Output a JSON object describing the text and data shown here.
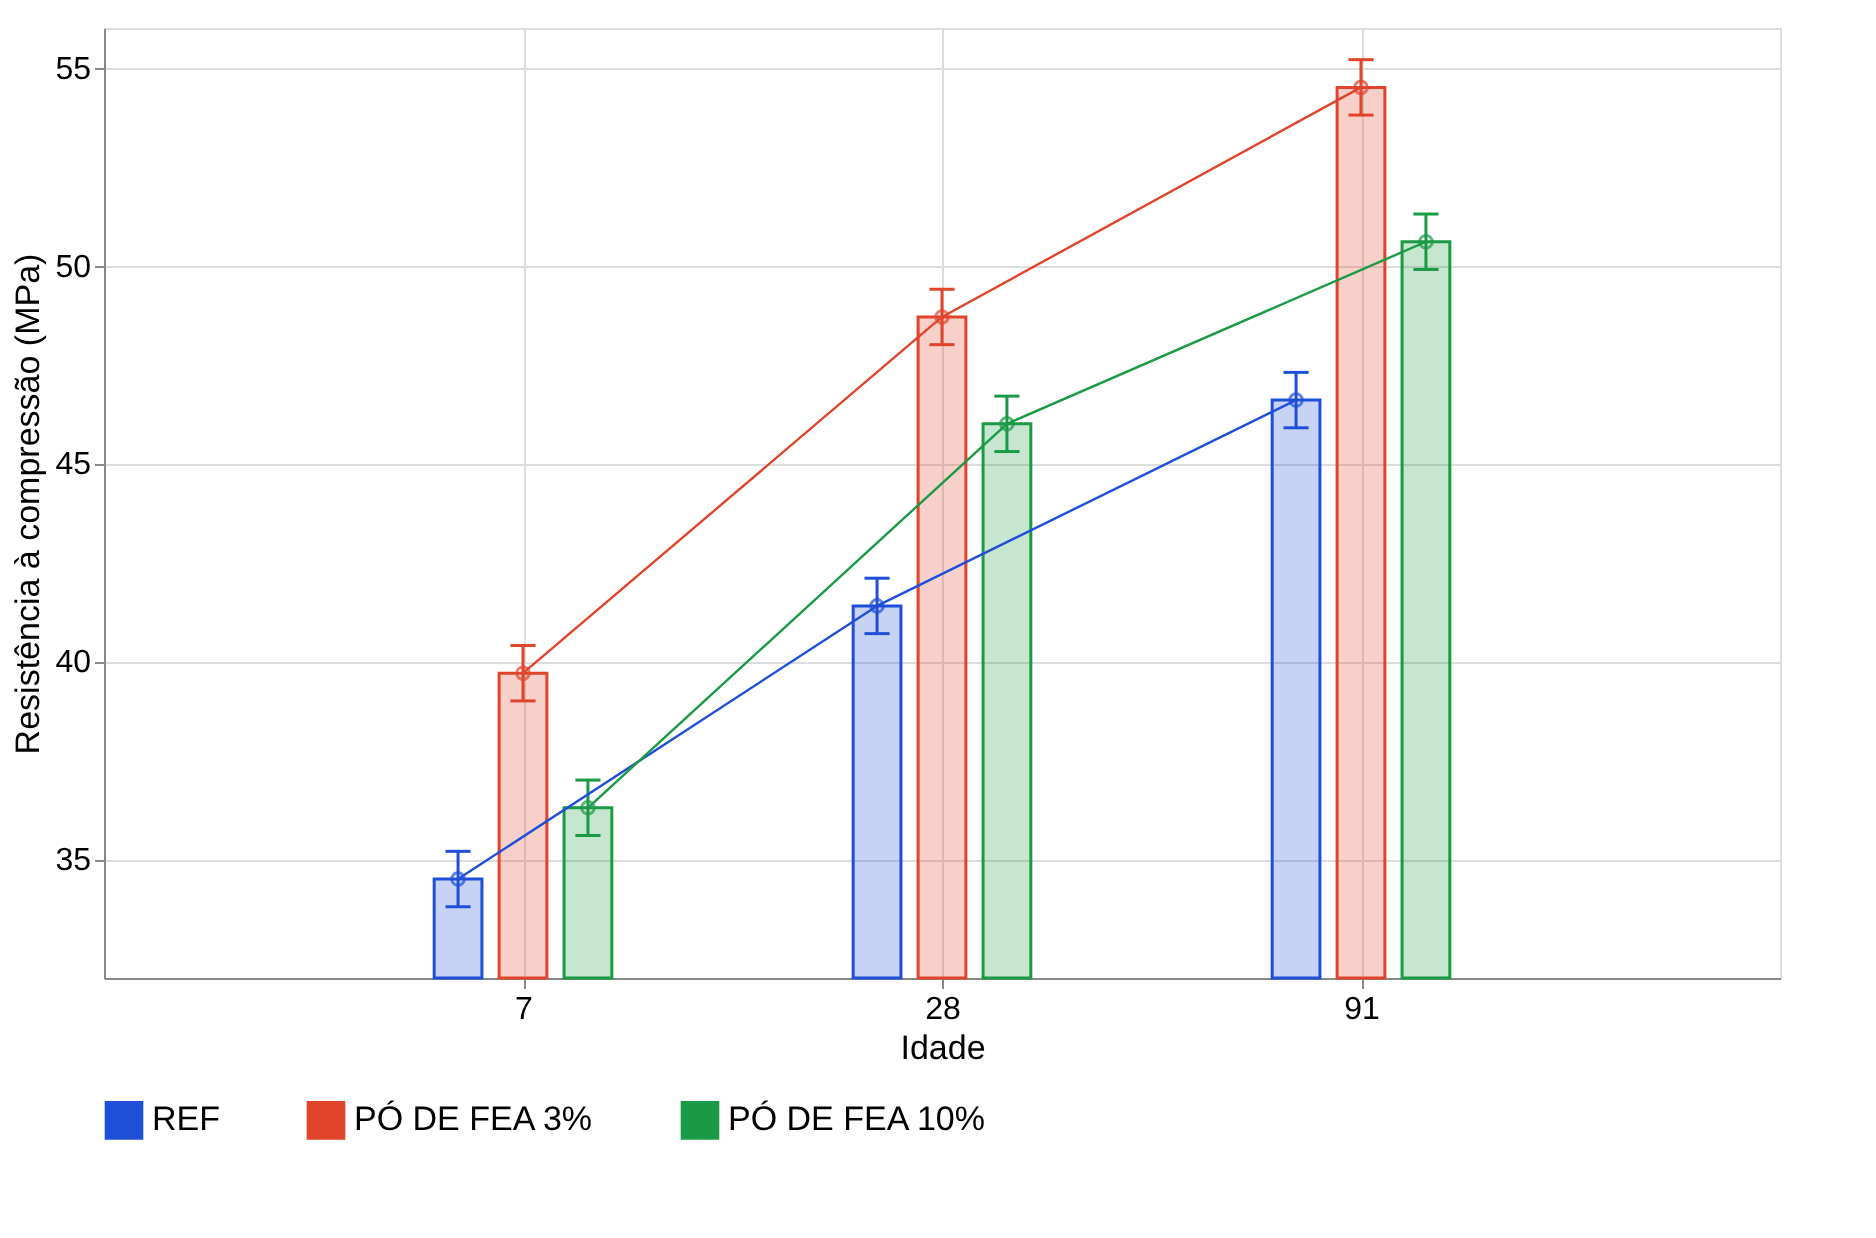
{
  "chart_data": {
    "type": "bar",
    "xlabel": "Idade",
    "ylabel": "Resistência à compressão (MPa)",
    "categories": [
      "7",
      "28",
      "91"
    ],
    "series": [
      {
        "name": "REF",
        "color": "#1f4fd8",
        "values": [
          34.5,
          41.4,
          46.6
        ],
        "errors": [
          0.7,
          0.7,
          0.7
        ]
      },
      {
        "name": "PÓ DE FEA 3%",
        "color": "#e0452b",
        "values": [
          39.7,
          48.7,
          54.5
        ],
        "errors": [
          0.7,
          0.7,
          0.7
        ]
      },
      {
        "name": "PÓ DE FEA 10%",
        "color": "#1a9a45",
        "values": [
          36.3,
          46.0,
          50.6
        ],
        "errors": [
          0.7,
          0.7,
          0.7
        ]
      },
      {
        "type": "line",
        "color": "#1f4fd8",
        "values": [
          34.5,
          41.4,
          46.6
        ]
      },
      {
        "type": "line",
        "color": "#e0452b",
        "values": [
          39.7,
          48.7,
          54.5
        ]
      },
      {
        "type": "line",
        "color": "#1a9a45",
        "values": [
          36.3,
          46.0,
          50.6
        ]
      }
    ],
    "ylim": [
      32,
      56
    ],
    "yticks": [
      35,
      40,
      45,
      50,
      55
    ],
    "grid": true,
    "legend": "bottom",
    "marker": "circle",
    "line_style": "solid"
  }
}
